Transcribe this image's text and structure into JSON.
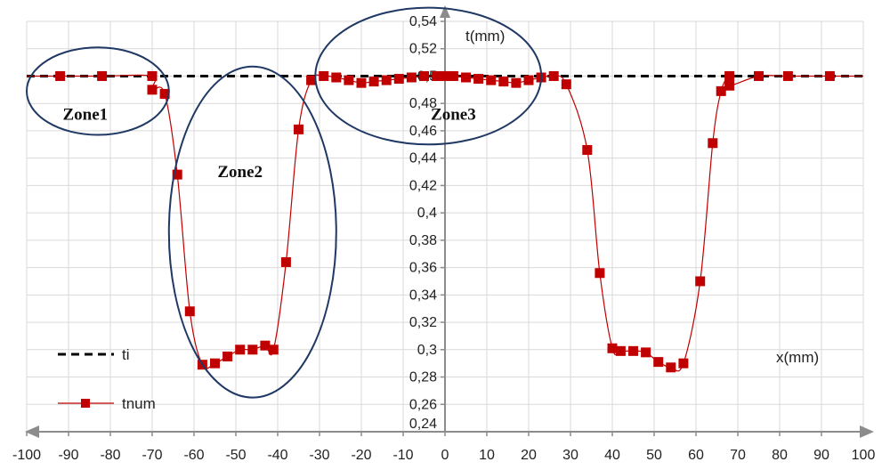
{
  "chart_data": {
    "type": "line",
    "xlabel": "x(mm)",
    "ylabel": "t(mm)",
    "xlim": [
      -100,
      100
    ],
    "ylim": [
      0.24,
      0.54
    ],
    "x_ticks": [
      -100,
      -90,
      -80,
      -70,
      -60,
      -50,
      -40,
      -30,
      -20,
      -10,
      0,
      10,
      20,
      30,
      40,
      50,
      60,
      70,
      80,
      90,
      100
    ],
    "x_tick_labels": [
      "-100",
      "-90",
      "-80",
      "-70",
      "-60",
      "-50",
      "-40",
      "-30",
      "-20",
      "-10",
      "0",
      "10",
      "20",
      "30",
      "40",
      "50",
      "60",
      "70",
      "80",
      "90",
      "100"
    ],
    "y_ticks": [
      0.24,
      0.26,
      0.28,
      0.3,
      0.32,
      0.34,
      0.36,
      0.38,
      0.4,
      0.42,
      0.44,
      0.46,
      0.48,
      0.5,
      0.52,
      0.54
    ],
    "y_tick_labels": [
      "0,24",
      "0,26",
      "0,28",
      "0,3",
      "0,32",
      "0,34",
      "0,36",
      "0,38",
      "0,4",
      "0,42",
      "0,44",
      "0,46",
      "0,48",
      "0,5",
      "0,52",
      "0,54"
    ],
    "grid": true,
    "legend_position": "bottom-left",
    "series": [
      {
        "name": "ti",
        "style": "dashed",
        "color": "#000000",
        "x": [
          -100,
          100
        ],
        "y": [
          0.5,
          0.5
        ]
      },
      {
        "name": "tnum",
        "style": "line-square-markers",
        "color": "#c00000",
        "x": [
          -100,
          -92,
          -82,
          -70,
          -70,
          -67,
          -64,
          -61,
          -58,
          -55,
          -52,
          -49,
          -46,
          -43,
          -41,
          -38,
          -35,
          -32,
          -29,
          -26,
          -23,
          -20,
          -17,
          -14,
          -11,
          -8,
          -5,
          -2,
          0,
          2,
          5,
          8,
          11,
          14,
          17,
          20,
          23,
          26,
          29,
          34,
          37,
          40,
          42,
          45,
          48,
          51,
          54,
          57,
          61,
          64,
          66,
          68,
          68,
          75,
          82,
          92,
          100
        ],
        "y": [
          0.5,
          0.5,
          0.5,
          0.5,
          0.49,
          0.487,
          0.428,
          0.328,
          0.289,
          0.29,
          0.295,
          0.3,
          0.3,
          0.303,
          0.3,
          0.364,
          0.461,
          0.497,
          0.5,
          0.499,
          0.497,
          0.495,
          0.496,
          0.497,
          0.498,
          0.499,
          0.5,
          0.5,
          0.5,
          0.5,
          0.499,
          0.498,
          0.497,
          0.496,
          0.495,
          0.497,
          0.499,
          0.5,
          0.494,
          0.446,
          0.356,
          0.301,
          0.299,
          0.299,
          0.298,
          0.291,
          0.287,
          0.29,
          0.35,
          0.451,
          0.489,
          0.5,
          0.493,
          0.5,
          0.5,
          0.5,
          0.5
        ]
      }
    ],
    "annotations": [
      {
        "text": "Zone1",
        "x": -86,
        "y": 0.468
      },
      {
        "text": "Zone2",
        "x": -49,
        "y": 0.426
      },
      {
        "text": "Zone3",
        "x": 2,
        "y": 0.468
      }
    ],
    "zones": [
      {
        "name": "Zone1",
        "cx": -83,
        "cy": 0.489,
        "rx": 17,
        "ry": 0.032
      },
      {
        "name": "Zone2",
        "cx": -46,
        "cy": 0.386,
        "rx": 20,
        "ry": 0.121
      },
      {
        "name": "Zone3",
        "cx": -4,
        "cy": 0.5,
        "rx": 27,
        "ry": 0.05
      }
    ]
  }
}
